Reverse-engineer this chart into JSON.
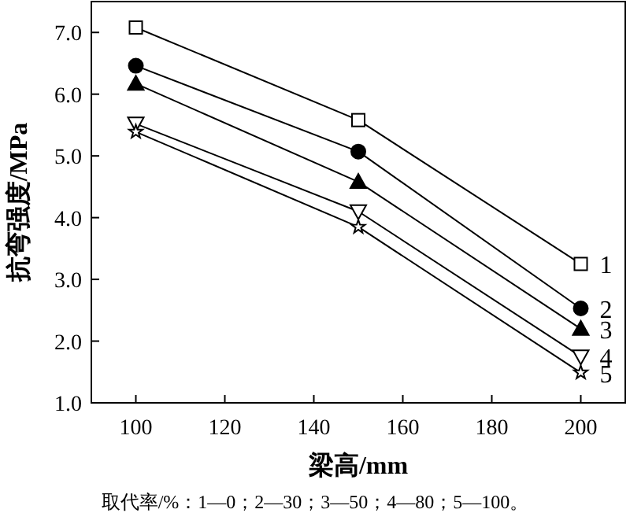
{
  "chart_data": {
    "type": "line",
    "xlabel": "梁高/mm",
    "ylabel": "抗弯强度/MPa",
    "x": [
      100,
      150,
      200
    ],
    "xlim": [
      90,
      210
    ],
    "xticks": [
      100,
      120,
      140,
      160,
      180,
      200
    ],
    "ylim": [
      1,
      7.5
    ],
    "yticks": [
      {
        "value": 1,
        "label": "1.0"
      },
      {
        "value": 2,
        "label": "2.0"
      },
      {
        "value": 3,
        "label": "3.0"
      },
      {
        "value": 4,
        "label": "4.0"
      },
      {
        "value": 5,
        "label": "5.0"
      },
      {
        "value": 6,
        "label": "6.0"
      },
      {
        "value": 7,
        "label": "7.0"
      }
    ],
    "series": [
      {
        "name": "1",
        "color": "#000000",
        "marker": "square",
        "values": [
          7.08,
          5.58,
          3.25
        ]
      },
      {
        "name": "2",
        "color": "#000000",
        "marker": "circle",
        "values": [
          6.46,
          5.07,
          2.53
        ]
      },
      {
        "name": "3",
        "color": "#000000",
        "marker": "triangle",
        "values": [
          6.17,
          4.58,
          2.2
        ]
      },
      {
        "name": "4",
        "color": "#000000",
        "marker": "triangle-down",
        "values": [
          5.52,
          4.1,
          1.75
        ]
      },
      {
        "name": "5",
        "color": "#000000",
        "marker": "star",
        "values": [
          5.39,
          3.85,
          1.49
        ]
      }
    ],
    "annotations": [
      "取代率/%：1—0；2—30；3—50；4—80；5—100。"
    ]
  }
}
